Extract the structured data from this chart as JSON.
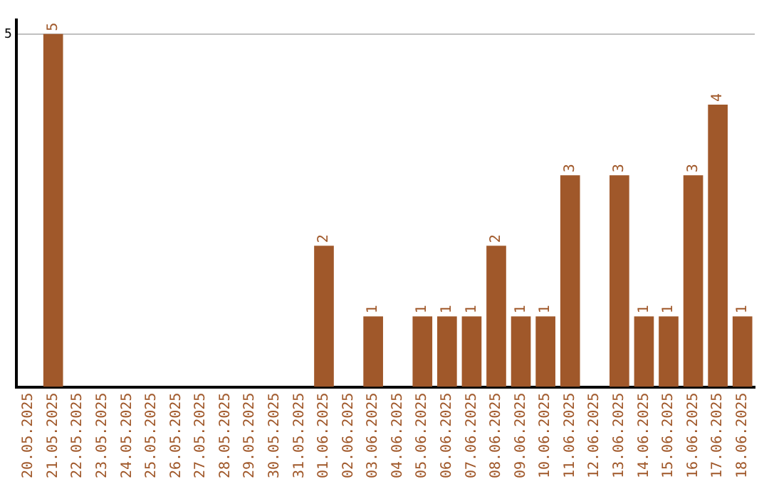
{
  "chart_data": {
    "type": "bar",
    "categories": [
      "20.05.2025",
      "21.05.2025",
      "22.05.2025",
      "23.05.2025",
      "24.05.2025",
      "25.05.2025",
      "26.05.2025",
      "27.05.2025",
      "28.05.2025",
      "29.05.2025",
      "30.05.2025",
      "31.05.2025",
      "01.06.2025",
      "02.06.2025",
      "03.06.2025",
      "04.06.2025",
      "05.06.2025",
      "06.06.2025",
      "07.06.2025",
      "08.06.2025",
      "09.06.2025",
      "10.06.2025",
      "11.06.2025",
      "12.06.2025",
      "13.06.2025",
      "14.06.2025",
      "15.06.2025",
      "16.06.2025",
      "17.06.2025",
      "18.06.2025"
    ],
    "values": [
      0,
      5,
      0,
      0,
      0,
      0,
      0,
      0,
      0,
      0,
      0,
      0,
      2,
      0,
      1,
      0,
      1,
      1,
      1,
      2,
      1,
      1,
      3,
      0,
      3,
      1,
      1,
      3,
      4,
      1
    ],
    "value_labels": [
      null,
      "5",
      null,
      null,
      null,
      null,
      null,
      null,
      null,
      null,
      null,
      null,
      "2",
      null,
      "1",
      null,
      "1",
      "1",
      "1",
      "2",
      "1",
      "1",
      "3",
      null,
      "3",
      "1",
      "1",
      "3",
      "4",
      "1"
    ],
    "color": "#a0582a",
    "ylim": [
      0,
      5.2
    ],
    "yticks": [
      5
    ],
    "grid": "y",
    "legend": false
  }
}
